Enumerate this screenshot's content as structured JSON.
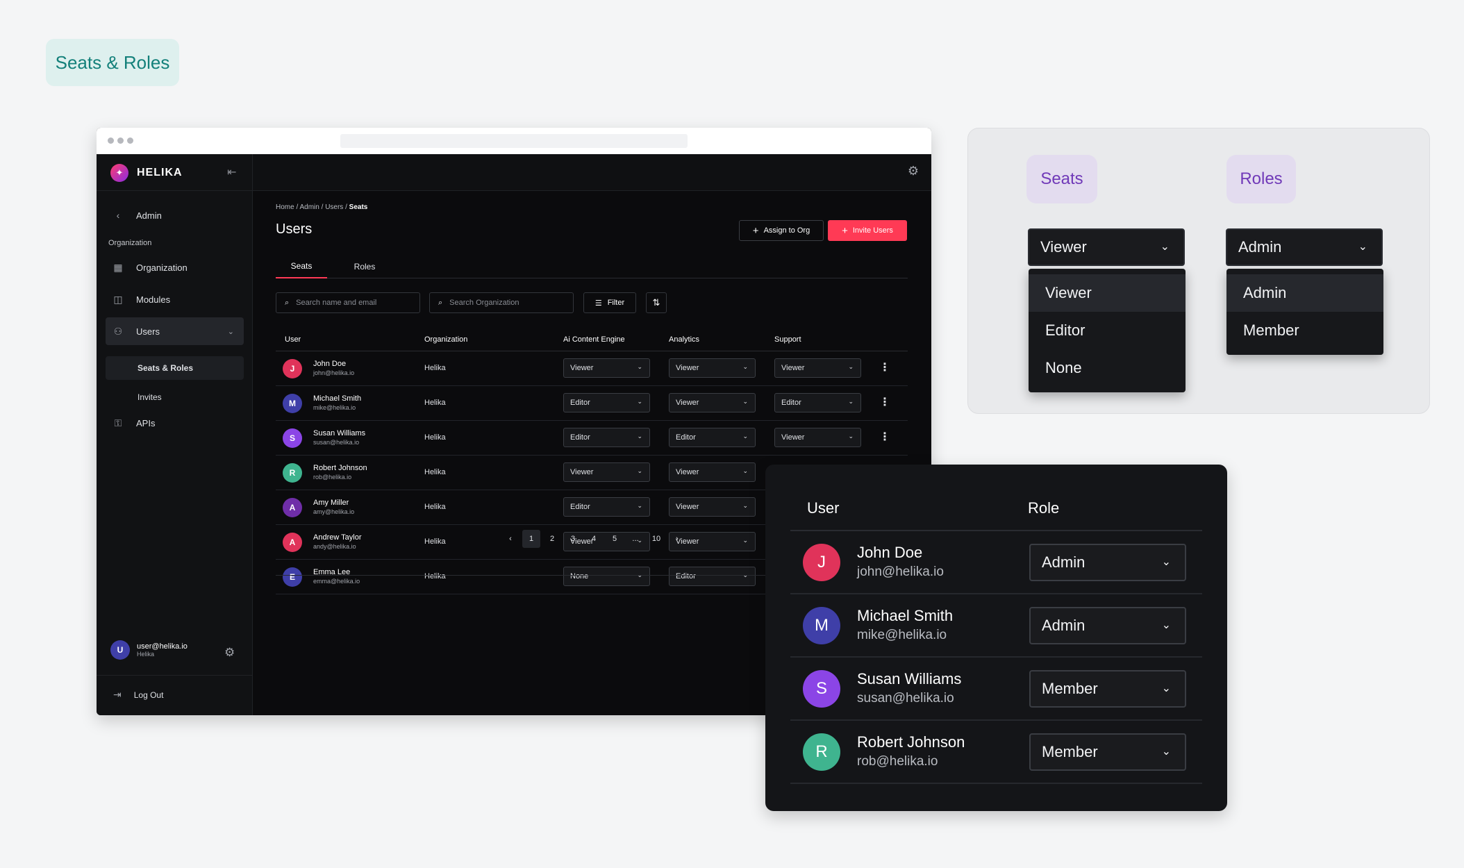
{
  "badge": "Seats & Roles",
  "app": {
    "brand": "HELIKA",
    "nav_back": "Admin",
    "section_label": "Organization",
    "nav": [
      {
        "label": "Organization",
        "icon": "building-icon"
      },
      {
        "label": "Modules",
        "icon": "modules-icon"
      },
      {
        "label": "Users",
        "icon": "users-icon"
      },
      {
        "label": "APIs",
        "icon": "key-icon"
      }
    ],
    "subnav": [
      "Seats & Roles",
      "Invites"
    ],
    "current_user": {
      "email": "user@helika.io",
      "org": "Helika",
      "initial": "U"
    },
    "logout": "Log Out"
  },
  "main": {
    "breadcrumb": [
      "Home",
      "Admin",
      "Users",
      "Seats"
    ],
    "title": "Users",
    "assign_btn": "Assign to Org",
    "invite_btn": "Invite Users",
    "tabs": [
      "Seats",
      "Roles"
    ],
    "search_name_placeholder": "Search name and email",
    "search_org_placeholder": "Search Organization",
    "filter_label": "Filter",
    "columns": [
      "User",
      "Organization",
      "Ai Content Engine",
      "Analytics",
      "Support"
    ],
    "rows": [
      {
        "initial": "J",
        "color": "#e0335a",
        "name": "John Doe",
        "email": "john@helika.io",
        "org": "Helika",
        "ai": "Viewer",
        "analytics": "Viewer",
        "support": "Viewer"
      },
      {
        "initial": "M",
        "color": "#3f3fa8",
        "name": "Michael Smith",
        "email": "mike@helika.io",
        "org": "Helika",
        "ai": "Editor",
        "analytics": "Viewer",
        "support": "Editor"
      },
      {
        "initial": "S",
        "color": "#8b45e6",
        "name": "Susan Williams",
        "email": "susan@helika.io",
        "org": "Helika",
        "ai": "Editor",
        "analytics": "Editor",
        "support": "Viewer"
      },
      {
        "initial": "R",
        "color": "#3fb48f",
        "name": "Robert Johnson",
        "email": "rob@helika.io",
        "org": "Helika",
        "ai": "Viewer",
        "analytics": "Viewer"
      },
      {
        "initial": "A",
        "color": "#6f2ea8",
        "name": "Amy Miller",
        "email": "amy@helika.io",
        "org": "Helika",
        "ai": "Editor",
        "analytics": "Viewer"
      },
      {
        "initial": "A",
        "color": "#e0335a",
        "name": "Andrew Taylor",
        "email": "andy@helika.io",
        "org": "Helika",
        "ai": "Viewer",
        "analytics": "Viewer"
      },
      {
        "initial": "E",
        "color": "#3f3fa8",
        "name": "Emma Lee",
        "email": "emma@helika.io",
        "org": "Helika",
        "ai": "None",
        "analytics": "Editor"
      }
    ],
    "pages": [
      "1",
      "2",
      "3",
      "4",
      "5",
      "...",
      "10"
    ]
  },
  "dropdowns": {
    "seats": {
      "title": "Seats",
      "value": "Viewer",
      "options": [
        "Viewer",
        "Editor",
        "None"
      ]
    },
    "roles": {
      "title": "Roles",
      "value": "Admin",
      "options": [
        "Admin",
        "Member"
      ]
    }
  },
  "role_card": {
    "col_user": "User",
    "col_role": "Role",
    "rows": [
      {
        "initial": "J",
        "color": "#e0335a",
        "name": "John Doe",
        "email": "john@helika.io",
        "role": "Admin"
      },
      {
        "initial": "M",
        "color": "#3f3fa8",
        "name": "Michael Smith",
        "email": "mike@helika.io",
        "role": "Admin"
      },
      {
        "initial": "S",
        "color": "#8b45e6",
        "name": "Susan Williams",
        "email": "susan@helika.io",
        "role": "Member"
      },
      {
        "initial": "R",
        "color": "#3fb48f",
        "name": "Robert Johnson",
        "email": "rob@helika.io",
        "role": "Member"
      }
    ]
  }
}
